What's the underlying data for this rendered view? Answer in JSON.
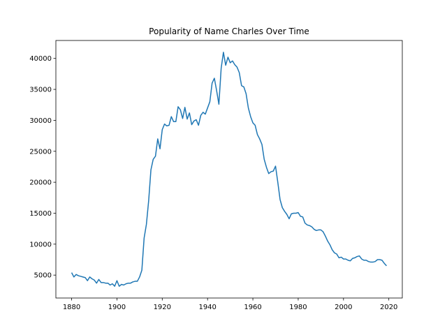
{
  "chart_data": {
    "type": "line",
    "title": "Popularity of Name Charles Over Time",
    "x": [
      1880,
      1881,
      1882,
      1883,
      1884,
      1885,
      1886,
      1887,
      1888,
      1889,
      1890,
      1891,
      1892,
      1893,
      1894,
      1895,
      1896,
      1897,
      1898,
      1899,
      1900,
      1901,
      1902,
      1903,
      1904,
      1905,
      1906,
      1907,
      1908,
      1909,
      1910,
      1911,
      1912,
      1913,
      1914,
      1915,
      1916,
      1917,
      1918,
      1919,
      1920,
      1921,
      1922,
      1923,
      1924,
      1925,
      1926,
      1927,
      1928,
      1929,
      1930,
      1931,
      1932,
      1933,
      1934,
      1935,
      1936,
      1937,
      1938,
      1939,
      1940,
      1941,
      1942,
      1943,
      1944,
      1945,
      1946,
      1947,
      1948,
      1949,
      1950,
      1951,
      1952,
      1953,
      1954,
      1955,
      1956,
      1957,
      1958,
      1959,
      1960,
      1961,
      1962,
      1963,
      1964,
      1965,
      1966,
      1967,
      1968,
      1969,
      1970,
      1971,
      1972,
      1973,
      1974,
      1975,
      1976,
      1977,
      1978,
      1979,
      1980,
      1981,
      1982,
      1983,
      1984,
      1985,
      1986,
      1987,
      1988,
      1989,
      1990,
      1991,
      1992,
      1993,
      1994,
      1995,
      1996,
      1997,
      1998,
      1999,
      2000,
      2001,
      2002,
      2003,
      2004,
      2005,
      2006,
      2007,
      2008,
      2009,
      2010,
      2011,
      2012,
      2013,
      2014,
      2015,
      2016,
      2017,
      2018,
      2019
    ],
    "series": [
      {
        "color": "#1f77b4",
        "values": [
          5400,
          4700,
          5100,
          4900,
          4800,
          4700,
          4600,
          4100,
          4700,
          4400,
          4200,
          3700,
          4300,
          3800,
          3800,
          3700,
          3700,
          3400,
          3600,
          3200,
          4100,
          3200,
          3500,
          3400,
          3600,
          3700,
          3700,
          3900,
          4000,
          4000,
          4700,
          5800,
          11000,
          13200,
          17000,
          22000,
          23700,
          24200,
          27000,
          25400,
          28500,
          29400,
          29100,
          29200,
          30600,
          29800,
          29800,
          32200,
          31700,
          30300,
          32100,
          30200,
          31200,
          29300,
          29900,
          30100,
          29200,
          30800,
          31300,
          31000,
          32000,
          33000,
          36000,
          36800,
          34800,
          32600,
          38400,
          41000,
          38900,
          40200,
          39300,
          39600,
          39000,
          38600,
          37700,
          35600,
          35400,
          34300,
          32000,
          30600,
          29600,
          29200,
          27700,
          27000,
          26100,
          23700,
          22400,
          21400,
          21700,
          21800,
          22600,
          20000,
          17200,
          15900,
          15300,
          14800,
          14100,
          14900,
          15000,
          15000,
          15100,
          14500,
          14400,
          13400,
          13100,
          13000,
          12800,
          12400,
          12200,
          12300,
          12300,
          12000,
          11300,
          10500,
          9900,
          9100,
          8600,
          8400,
          7800,
          7900,
          7600,
          7600,
          7400,
          7300,
          7700,
          7800,
          8000,
          8100,
          7600,
          7400,
          7400,
          7200,
          7100,
          7100,
          7200,
          7500,
          7500,
          7400,
          6900,
          6500
        ]
      }
    ],
    "xlim": [
      1873.05,
      2025.95
    ],
    "ylim": [
      1300,
      42900
    ],
    "xticks": [
      1880,
      1900,
      1920,
      1940,
      1960,
      1980,
      2000,
      2020
    ],
    "yticks": [
      5000,
      10000,
      15000,
      20000,
      25000,
      30000,
      35000,
      40000
    ]
  }
}
